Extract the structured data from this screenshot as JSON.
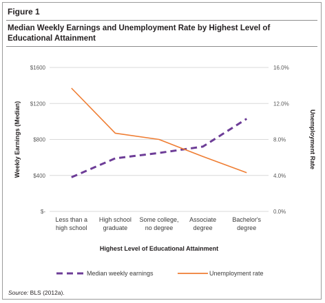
{
  "figure_label": "Figure 1",
  "source": {
    "prefix": "Source:",
    "text": " BLS (2012a)."
  },
  "colors": {
    "earnings": "#6d3d97",
    "unemployment": "#ef7d32",
    "grid": "#d9d9d9",
    "text": "#595959"
  },
  "chart_data": {
    "type": "line",
    "title": "Median Weekly Earnings and Unemployment Rate by Highest Level of Educational Attainment",
    "xlabel": "Highest Level of Educational Attainment",
    "ylabel_left": "Weekly Earnings (Median)",
    "ylabel_right": "Unemployment Rate",
    "categories": [
      [
        "Less than a",
        "high school"
      ],
      [
        "High school",
        "graduate"
      ],
      [
        "Some college,",
        "no degree"
      ],
      [
        "Associate",
        "degree"
      ],
      [
        "Bachelor's",
        "degree"
      ]
    ],
    "y_left": {
      "min": 0,
      "max": 1600,
      "ticks": [
        "$-",
        "$400",
        "$800",
        "$1200",
        "$1600"
      ]
    },
    "y_right": {
      "min": 0,
      "max": 16,
      "ticks": [
        "0.0%",
        "4.0%",
        "8.0%",
        "12.0%",
        "16.0%"
      ]
    },
    "grid": true,
    "legend_position": "bottom",
    "series": [
      {
        "name": "Median weekly earnings",
        "axis": "left",
        "style": "dashed",
        "values": [
          380,
          590,
          650,
          720,
          1030
        ]
      },
      {
        "name": "Unemployment rate",
        "axis": "right",
        "style": "solid",
        "values": [
          13.7,
          8.7,
          8.0,
          6.1,
          4.3
        ]
      }
    ]
  }
}
